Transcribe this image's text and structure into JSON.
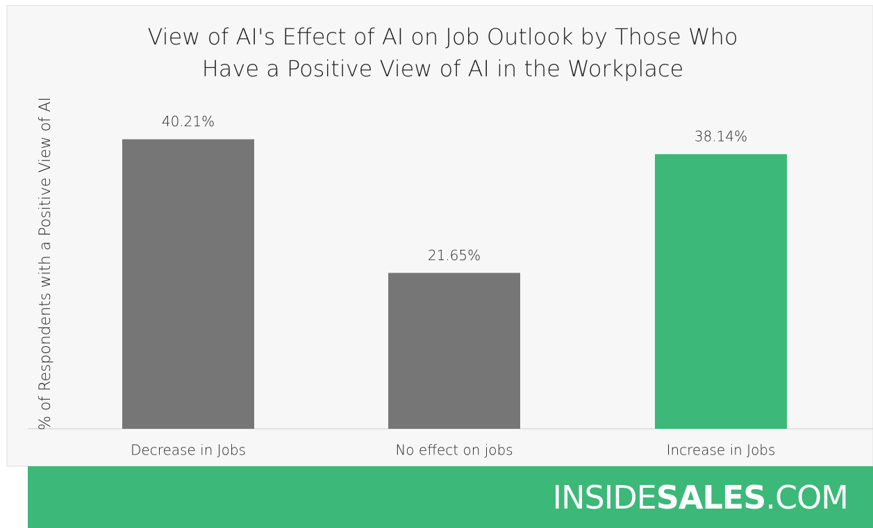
{
  "chart_data": {
    "type": "bar",
    "title": "View of AI's Effect of AI on Job Outlook by Those Who Have a Positive View of AI in the Workplace",
    "y_label": "% of Respondents with a Positive View of AI",
    "categories": [
      "Decrease in Jobs",
      "No effect on jobs",
      "Increase in Jobs"
    ],
    "values": [
      40.21,
      21.65,
      38.14
    ],
    "value_labels": [
      "40.21%",
      "21.65%",
      "38.14%"
    ],
    "colors": [
      "#767676",
      "#767676",
      "#3cb878"
    ],
    "ylim": [
      0,
      45
    ],
    "footer": {
      "brand": [
        "INSIDE",
        "SALES",
        ".COM"
      ],
      "color": "#3cb878"
    }
  }
}
